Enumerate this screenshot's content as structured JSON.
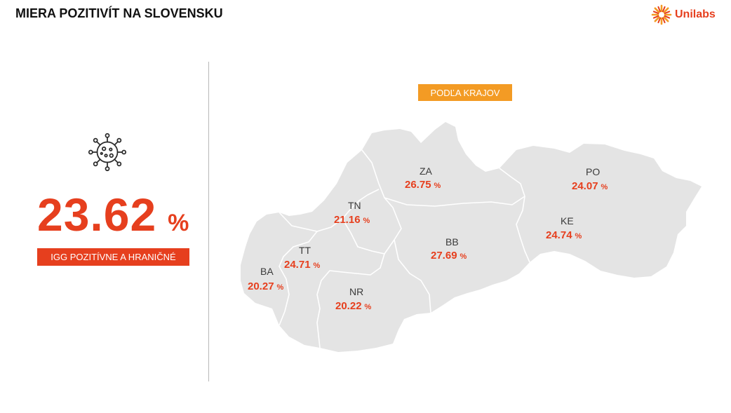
{
  "header": {
    "title": "MIERA POZITIVÍT NA SLOVENSKU"
  },
  "brand": {
    "name": "Unilabs",
    "color": "#e63f1e",
    "icon": "unilabs-sun-logo"
  },
  "summary": {
    "icon": "virus-icon",
    "value": "23.62",
    "unit": "%",
    "label": "IGG POZITÍVNE A HRANIČNÉ"
  },
  "map": {
    "filter_label": "PODĽA KRAJOV",
    "land_color": "#e4e4e4",
    "accent_color": "#e63f1e",
    "button_color": "#f39b24",
    "regions": [
      {
        "code": "ZA",
        "value": "26.75",
        "unit": "%"
      },
      {
        "code": "PO",
        "value": "24.07",
        "unit": "%"
      },
      {
        "code": "TN",
        "value": "21.16",
        "unit": "%"
      },
      {
        "code": "KE",
        "value": "24.74",
        "unit": "%"
      },
      {
        "code": "BB",
        "value": "27.69",
        "unit": "%"
      },
      {
        "code": "TT",
        "value": "24.71",
        "unit": "%"
      },
      {
        "code": "BA",
        "value": "20.27",
        "unit": "%"
      },
      {
        "code": "NR",
        "value": "20.22",
        "unit": "%"
      }
    ]
  }
}
